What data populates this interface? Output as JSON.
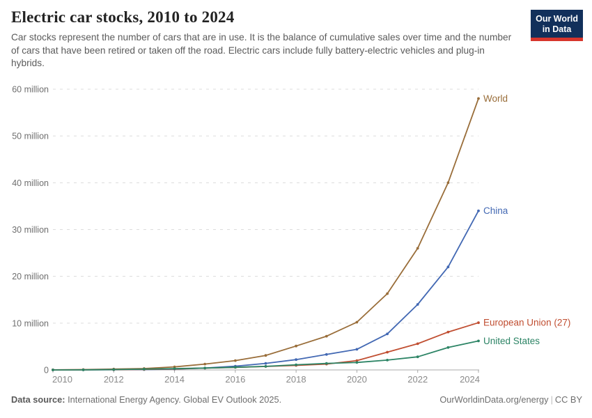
{
  "header": {
    "title": "Electric car stocks, 2010 to 2024",
    "subtitle": "Car stocks represent the number of cars that are in use. It is the balance of cumulative sales over time and the number of cars that have been retired or taken off the road. Electric cars include fully battery-electric vehicles and plug-in hybrids."
  },
  "logo": {
    "line1": "Our World",
    "line2": "in Data",
    "bg_color": "#12305b",
    "stripe_color": "#d7352c"
  },
  "footer": {
    "source_label": "Data source:",
    "source_text": "International Energy Agency. Global EV Outlook 2025.",
    "right_url": "OurWorldinData.org/energy",
    "separator": "|",
    "license": "CC BY"
  },
  "chart_data": {
    "type": "line",
    "title": "Electric car stocks, 2010 to 2024",
    "xlabel": "",
    "ylabel": "",
    "x": [
      2010,
      2011,
      2012,
      2013,
      2014,
      2015,
      2016,
      2017,
      2018,
      2019,
      2020,
      2021,
      2022,
      2023,
      2024
    ],
    "series": [
      {
        "name": "World",
        "color": "#996d39",
        "values": [
          0.02,
          0.07,
          0.18,
          0.3,
          0.65,
          1.25,
          2.0,
          3.1,
          5.1,
          7.2,
          10.2,
          16.3,
          26,
          40,
          58
        ]
      },
      {
        "name": "China",
        "color": "#4268b3",
        "values": [
          0.01,
          0.02,
          0.04,
          0.08,
          0.18,
          0.4,
          0.8,
          1.4,
          2.2,
          3.3,
          4.4,
          7.7,
          14,
          22,
          34
        ]
      },
      {
        "name": "European Union (27)",
        "color": "#c04e31",
        "values": [
          0.01,
          0.03,
          0.06,
          0.12,
          0.22,
          0.38,
          0.55,
          0.75,
          0.97,
          1.25,
          2.0,
          3.8,
          5.6,
          8.1,
          10.1
        ]
      },
      {
        "name": "United States",
        "color": "#2c8465",
        "values": [
          0.0,
          0.02,
          0.07,
          0.17,
          0.29,
          0.4,
          0.56,
          0.76,
          1.1,
          1.4,
          1.6,
          2.1,
          2.8,
          4.8,
          6.2
        ]
      }
    ],
    "ylim": [
      0,
      60
    ],
    "yticks": [
      {
        "value": 0,
        "label": "0"
      },
      {
        "value": 10,
        "label": "10 million"
      },
      {
        "value": 20,
        "label": "20 million"
      },
      {
        "value": 30,
        "label": "30 million"
      },
      {
        "value": 40,
        "label": "40 million"
      },
      {
        "value": 50,
        "label": "50 million"
      },
      {
        "value": 60,
        "label": "60 million"
      }
    ],
    "xticks": [
      2010,
      2012,
      2014,
      2016,
      2018,
      2020,
      2022,
      2024
    ],
    "grid": "horizontal-dashed",
    "legend": "line-end-labels"
  }
}
